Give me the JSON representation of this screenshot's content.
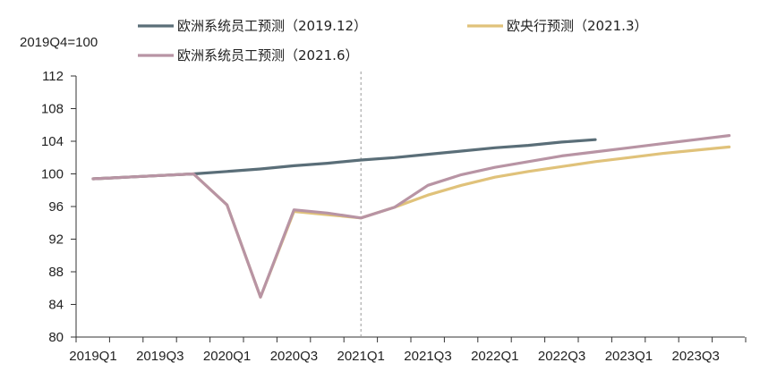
{
  "chart_data": {
    "type": "line",
    "title": "",
    "xlabel": "",
    "ylabel": "2019Q4=100",
    "ylim": [
      80,
      112
    ],
    "yticks": [
      80,
      84,
      88,
      92,
      96,
      100,
      104,
      108,
      112
    ],
    "x_tick_labels": [
      "2019Q1",
      "2019Q3",
      "2020Q1",
      "2020Q3",
      "2021Q1",
      "2021Q3",
      "2022Q1",
      "2022Q3",
      "2023Q1",
      "2023Q3"
    ],
    "x_quarters": [
      "2019Q1",
      "2019Q2",
      "2019Q3",
      "2019Q4",
      "2020Q1",
      "2020Q2",
      "2020Q3",
      "2020Q4",
      "2021Q1",
      "2021Q2",
      "2021Q3",
      "2021Q4",
      "2022Q1",
      "2022Q2",
      "2022Q3",
      "2022Q4",
      "2023Q1",
      "2023Q2",
      "2023Q3",
      "2023Q4"
    ],
    "divider_at": "2021Q1",
    "grid": false,
    "legend_position": "top",
    "series": [
      {
        "name": "欧洲系统员工预测（2019.12）",
        "color": "#5a6e78",
        "x": [
          "2019Q1",
          "2019Q2",
          "2019Q3",
          "2019Q4",
          "2020Q1",
          "2020Q2",
          "2020Q3",
          "2020Q4",
          "2021Q1",
          "2021Q2",
          "2021Q3",
          "2021Q4",
          "2022Q1",
          "2022Q2",
          "2022Q3",
          "2022Q4"
        ],
        "values": [
          99.4,
          99.6,
          99.8,
          100.0,
          100.3,
          100.6,
          101.0,
          101.3,
          101.7,
          102.0,
          102.4,
          102.8,
          103.2,
          103.5,
          103.9,
          104.2
        ]
      },
      {
        "name": "欧央行预测（2021.3）",
        "color": "#e0c27a",
        "x": [
          "2019Q1",
          "2019Q2",
          "2019Q3",
          "2019Q4",
          "2020Q1",
          "2020Q2",
          "2020Q3",
          "2020Q4",
          "2021Q1",
          "2021Q2",
          "2021Q3",
          "2021Q4",
          "2022Q1",
          "2022Q2",
          "2022Q3",
          "2022Q4",
          "2023Q1",
          "2023Q2",
          "2023Q3",
          "2023Q4"
        ],
        "values": [
          99.4,
          99.6,
          99.8,
          100.0,
          96.2,
          84.9,
          95.4,
          95.0,
          94.6,
          95.9,
          97.4,
          98.6,
          99.6,
          100.3,
          100.9,
          101.5,
          102.0,
          102.5,
          102.9,
          103.3
        ]
      },
      {
        "name": "欧洲系统员工预测（2021.6）",
        "color": "#b894a4",
        "x": [
          "2019Q1",
          "2019Q2",
          "2019Q3",
          "2019Q4",
          "2020Q1",
          "2020Q2",
          "2020Q3",
          "2020Q4",
          "2021Q1",
          "2021Q2",
          "2021Q3",
          "2021Q4",
          "2022Q1",
          "2022Q2",
          "2022Q3",
          "2022Q4",
          "2023Q1",
          "2023Q2",
          "2023Q3",
          "2023Q4"
        ],
        "values": [
          99.4,
          99.6,
          99.8,
          100.0,
          96.2,
          84.9,
          95.6,
          95.2,
          94.6,
          95.9,
          98.6,
          99.9,
          100.8,
          101.5,
          102.2,
          102.7,
          103.2,
          103.7,
          104.2,
          104.7
        ]
      }
    ]
  }
}
